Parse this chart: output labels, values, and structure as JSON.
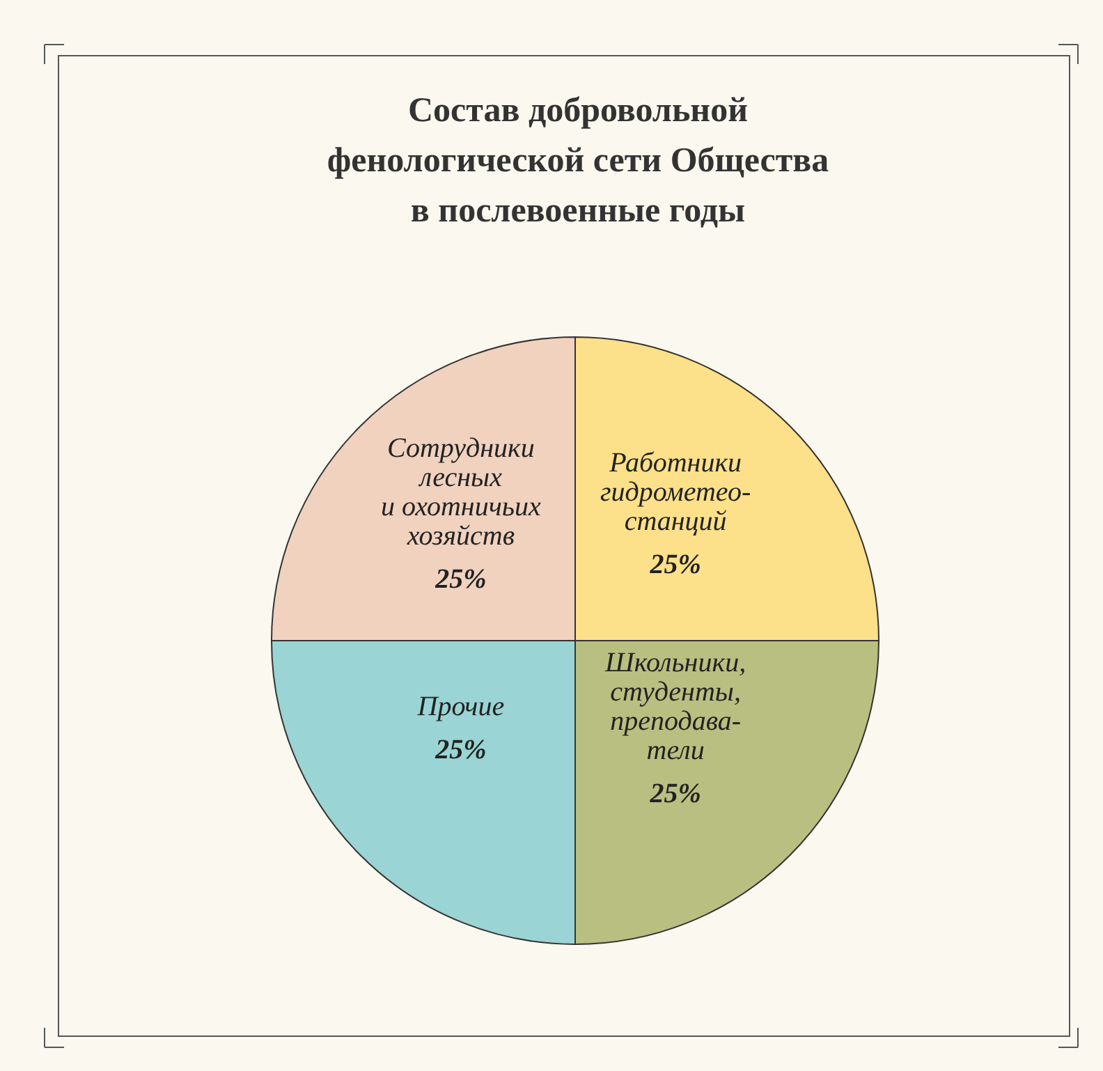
{
  "chart_data": {
    "type": "pie",
    "title": "Состав добровольной\nфенологической сети Общества\nв послевоенные годы",
    "categories": [
      "Работники\nгидрометео-\nстанций",
      "Школьники,\nстуденты,\nпреподава-\nтели",
      "Прочие",
      "Сотрудники\nлесных\nи охотничьих\nхозяйств"
    ],
    "values": [
      25,
      25,
      25,
      25
    ],
    "colors": [
      "#fde08a",
      "#b9bf80",
      "#9ad4d4",
      "#f0d2bf"
    ],
    "value_labels": [
      "25%",
      "25%",
      "25%",
      "25%"
    ],
    "legend": false
  }
}
